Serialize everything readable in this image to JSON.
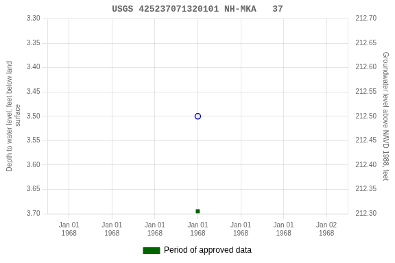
{
  "chart_data": {
    "type": "scatter",
    "title": "USGS 425237071320101 NH-MKA   37",
    "ylabel": "Depth to water level, feet below land\n surface",
    "y2label": "Groundwater level above NAVD 1988, feet",
    "categories": [
      "Jan 01\n1968",
      "Jan 01\n1968",
      "Jan 01\n1968",
      "Jan 01\n1968",
      "Jan 01\n1968",
      "Jan 01\n1968",
      "Jan 02\n1968"
    ],
    "series": [
      {
        "color": "#0000cc",
        "marker": "open_circle",
        "values": [
          null,
          null,
          null,
          3.5,
          null,
          null,
          null
        ]
      },
      {
        "name": "Period of approved data",
        "color": "#006400",
        "marker": "square",
        "values": [
          null,
          null,
          null,
          3.695,
          null,
          null,
          null
        ]
      }
    ],
    "ylim": [
      3.7,
      3.3
    ],
    "yticks": [
      {
        "value": 3.3,
        "label": "3.30"
      },
      3.35,
      {
        "value": 3.4,
        "label": "3.40"
      },
      3.45,
      {
        "value": 3.5,
        "label": "3.50"
      },
      3.55,
      {
        "value": 3.6,
        "label": "3.60"
      },
      3.65,
      {
        "value": 3.7,
        "label": "3.70"
      }
    ],
    "y2lim": [
      212.3,
      212.7
    ],
    "y2ticks": [
      {
        "value": 212.7,
        "label": "212.70"
      },
      212.65,
      {
        "value": 212.6,
        "label": "212.60"
      },
      212.55,
      {
        "value": 212.5,
        "label": "212.50"
      },
      212.45,
      {
        "value": 212.4,
        "label": "212.40"
      },
      212.35,
      {
        "value": 212.3,
        "label": "212.30"
      }
    ],
    "grid": true,
    "legend": "bottom"
  }
}
